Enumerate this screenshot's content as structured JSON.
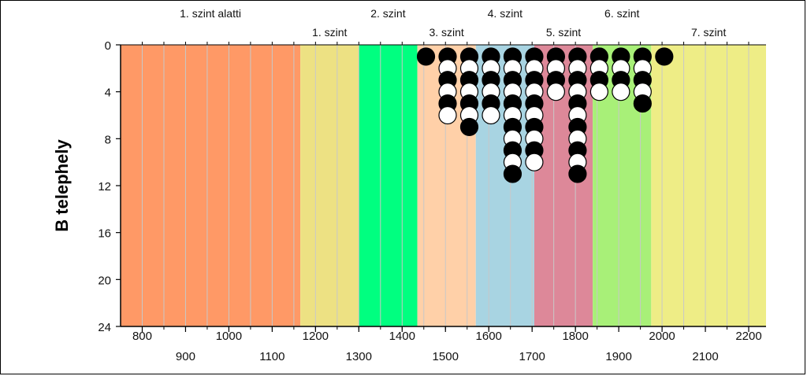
{
  "chart_data": {
    "type": "scatter",
    "title": "",
    "xlabel": "",
    "ylabel": "B telephely",
    "xlim": [
      750,
      2240
    ],
    "ylim": [
      0,
      24
    ],
    "y_inverted": true,
    "grid": true,
    "x_ticks_row1": [
      800,
      1000,
      1200,
      1400,
      1600,
      1800,
      2000,
      2200
    ],
    "x_ticks_row1_labels": [
      "800",
      "1000",
      "1200",
      "1400",
      "1600",
      "1800",
      "2000",
      "2200"
    ],
    "x_ticks_row2": [
      900,
      1100,
      1300,
      1500,
      1700,
      1900,
      2100
    ],
    "x_ticks_row2_labels": [
      "900",
      "1100",
      "1300",
      "1500",
      "1700",
      "1900",
      "2100"
    ],
    "y_ticks": [
      0,
      4,
      8,
      12,
      16,
      20,
      24
    ],
    "y_tick_labels": [
      "0",
      "4",
      "8",
      "12",
      "16",
      "20",
      "24"
    ],
    "bands": [
      {
        "label": "1. szint alatti",
        "start": 750,
        "end": 1165,
        "color": "#ff9966",
        "label_row": "top"
      },
      {
        "label": "1. szint",
        "start": 1165,
        "end": 1300,
        "color": "#ede183",
        "label_row": "bottom"
      },
      {
        "label": "2. szint",
        "start": 1300,
        "end": 1435,
        "color": "#00ff80",
        "label_row": "top"
      },
      {
        "label": "3. szint",
        "start": 1435,
        "end": 1570,
        "color": "#ffd0a8",
        "label_row": "bottom"
      },
      {
        "label": "4. szint",
        "start": 1570,
        "end": 1705,
        "color": "#a8d4e2",
        "label_row": "top"
      },
      {
        "label": "5. szint",
        "start": 1705,
        "end": 1840,
        "color": "#dd8899",
        "label_row": "bottom"
      },
      {
        "label": "6. szint",
        "start": 1840,
        "end": 1975,
        "color": "#a8f078",
        "label_row": "top"
      },
      {
        "label": "7. szint",
        "start": 1975,
        "end": 2240,
        "color": "#eeed86",
        "label_row": "bottom"
      }
    ],
    "columns": [
      {
        "x": 1455,
        "sequence": [
          "black"
        ]
      },
      {
        "x": 1505,
        "sequence": [
          "black",
          "white",
          "black",
          "white",
          "black",
          "white"
        ]
      },
      {
        "x": 1555,
        "sequence": [
          "black",
          "white",
          "black",
          "white",
          "black",
          "white",
          "black"
        ]
      },
      {
        "x": 1605,
        "sequence": [
          "black",
          "white",
          "black",
          "white",
          "black",
          "white"
        ]
      },
      {
        "x": 1655,
        "sequence": [
          "black",
          "white",
          "black",
          "white",
          "black",
          "white",
          "black",
          "white",
          "black",
          "white",
          "black"
        ]
      },
      {
        "x": 1705,
        "sequence": [
          "black",
          "white",
          "black",
          "white",
          "black",
          "white",
          "black",
          "white",
          "black",
          "white"
        ]
      },
      {
        "x": 1755,
        "sequence": [
          "black",
          "white",
          "black",
          "white"
        ]
      },
      {
        "x": 1805,
        "sequence": [
          "black",
          "white",
          "black",
          "white",
          "black",
          "white",
          "black",
          "white",
          "black",
          "white",
          "black"
        ]
      },
      {
        "x": 1855,
        "sequence": [
          "black",
          "white",
          "black",
          "white"
        ]
      },
      {
        "x": 1905,
        "sequence": [
          "black",
          "white",
          "black",
          "white"
        ]
      },
      {
        "x": 1955,
        "sequence": [
          "black",
          "white",
          "black",
          "white",
          "black"
        ]
      },
      {
        "x": 2005,
        "sequence": [
          "black"
        ]
      }
    ],
    "colors": {
      "black_marker": "#000000",
      "white_marker": "#ffffff",
      "grid": "#c8c8c8",
      "axis": "#000000"
    }
  }
}
